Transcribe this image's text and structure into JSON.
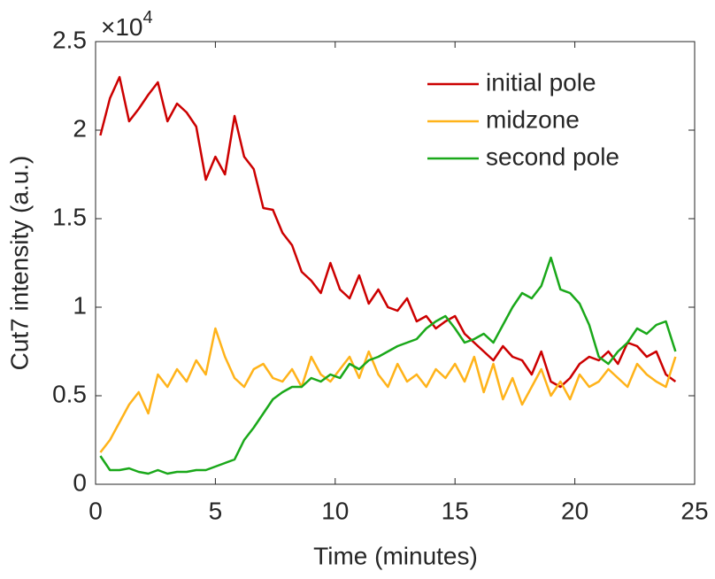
{
  "chart_data": {
    "type": "line",
    "xlabel": "Time (minutes)",
    "ylabel": "Cut7 intensity (a.u.)",
    "y_multiplier": {
      "base": "×10",
      "exponent": "4"
    },
    "x": [
      0.2,
      0.6,
      1,
      1.4,
      1.8,
      2.2,
      2.6,
      3,
      3.4,
      3.8,
      4.2,
      4.6,
      5,
      5.4,
      5.8,
      6.2,
      6.6,
      7,
      7.4,
      7.8,
      8.2,
      8.6,
      9,
      9.4,
      9.8,
      10.2,
      10.6,
      11,
      11.4,
      11.8,
      12.2,
      12.6,
      13,
      13.4,
      13.8,
      14.2,
      14.6,
      15,
      15.4,
      15.8,
      16.2,
      16.6,
      17,
      17.4,
      17.8,
      18.2,
      18.6,
      19,
      19.4,
      19.8,
      20.2,
      20.6,
      21,
      21.4,
      21.8,
      22.2,
      22.6,
      23,
      23.4,
      23.8,
      24.2
    ],
    "series": [
      {
        "name": "initial pole",
        "color": "#cc0000",
        "values": [
          1.97,
          2.18,
          2.3,
          2.05,
          2.12,
          2.2,
          2.27,
          2.05,
          2.15,
          2.1,
          2.02,
          1.72,
          1.85,
          1.75,
          2.08,
          1.85,
          1.78,
          1.56,
          1.55,
          1.42,
          1.35,
          1.2,
          1.15,
          1.08,
          1.25,
          1.1,
          1.05,
          1.18,
          1.02,
          1.1,
          1.0,
          0.98,
          1.05,
          0.92,
          0.95,
          0.88,
          0.92,
          0.95,
          0.85,
          0.8,
          0.75,
          0.7,
          0.78,
          0.72,
          0.7,
          0.62,
          0.75,
          0.58,
          0.55,
          0.6,
          0.68,
          0.72,
          0.7,
          0.75,
          0.68,
          0.8,
          0.78,
          0.72,
          0.75,
          0.62,
          0.58
        ]
      },
      {
        "name": "midzone",
        "color": "#ffb31a",
        "values": [
          0.18,
          0.25,
          0.35,
          0.45,
          0.52,
          0.4,
          0.62,
          0.55,
          0.65,
          0.58,
          0.7,
          0.62,
          0.88,
          0.72,
          0.6,
          0.55,
          0.65,
          0.68,
          0.6,
          0.58,
          0.65,
          0.55,
          0.72,
          0.62,
          0.58,
          0.65,
          0.72,
          0.6,
          0.75,
          0.62,
          0.55,
          0.68,
          0.58,
          0.62,
          0.55,
          0.65,
          0.6,
          0.68,
          0.58,
          0.72,
          0.52,
          0.68,
          0.48,
          0.6,
          0.45,
          0.55,
          0.65,
          0.5,
          0.58,
          0.48,
          0.62,
          0.55,
          0.58,
          0.65,
          0.6,
          0.55,
          0.68,
          0.62,
          0.58,
          0.55,
          0.72
        ]
      },
      {
        "name": "second pole",
        "color": "#1aa81a",
        "values": [
          0.16,
          0.08,
          0.08,
          0.09,
          0.07,
          0.06,
          0.08,
          0.06,
          0.07,
          0.07,
          0.08,
          0.08,
          0.1,
          0.12,
          0.14,
          0.25,
          0.32,
          0.4,
          0.48,
          0.52,
          0.55,
          0.55,
          0.6,
          0.58,
          0.62,
          0.6,
          0.68,
          0.65,
          0.7,
          0.72,
          0.75,
          0.78,
          0.8,
          0.82,
          0.88,
          0.92,
          0.95,
          0.88,
          0.8,
          0.82,
          0.85,
          0.8,
          0.9,
          1.0,
          1.08,
          1.05,
          1.12,
          1.28,
          1.1,
          1.08,
          1.02,
          0.9,
          0.72,
          0.68,
          0.75,
          0.8,
          0.88,
          0.85,
          0.9,
          0.92,
          0.75
        ]
      }
    ],
    "xlim": [
      0,
      25
    ],
    "xticks": [
      0,
      5,
      10,
      15,
      20,
      25
    ],
    "ylim": [
      0,
      2.5
    ],
    "yticks": [
      0,
      0.5,
      1,
      1.5,
      2,
      2.5
    ],
    "grid": false,
    "legend": "northeast"
  }
}
